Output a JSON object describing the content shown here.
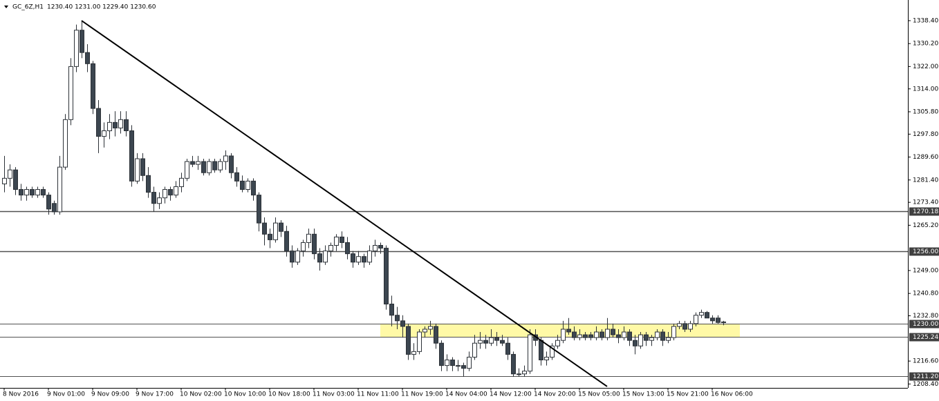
{
  "chart_data": {
    "type": "candlestick",
    "symbol": "GC_6Z,H1",
    "ohlc": "1230.40 1231.00 1229.40 1230.60",
    "ylim": [
      1207.0,
      1345.8
    ],
    "yticks": [
      {
        "value": 1338.4,
        "label": "1338.40"
      },
      {
        "value": 1330.2,
        "label": "1330.20"
      },
      {
        "value": 1322,
        "label": "1322.00"
      },
      {
        "value": 1314,
        "label": "1314.00"
      },
      {
        "value": 1305.8,
        "label": "1305.80"
      },
      {
        "value": 1297.8,
        "label": "1297.80"
      },
      {
        "value": 1289.6,
        "label": "1289.60"
      },
      {
        "value": 1281.4,
        "label": "1281.40"
      },
      {
        "value": 1273.4,
        "label": "1273.40"
      },
      {
        "value": 1265.2,
        "label": "1265.20"
      },
      {
        "value": 1249,
        "label": "1249.00"
      },
      {
        "value": 1240.8,
        "label": "1240.80"
      },
      {
        "value": 1232.8,
        "label": "1232.80"
      },
      {
        "value": 1216.6,
        "label": "1216.60"
      },
      {
        "value": 1208.4,
        "label": "1208.40"
      }
    ],
    "levels": [
      {
        "value": 1270.18,
        "label": "1270.18"
      },
      {
        "value": 1256,
        "label": "1256.00"
      },
      {
        "value": 1230,
        "label": "1230.00"
      },
      {
        "value": 1225.24,
        "label": "1225.24"
      },
      {
        "value": 1211.2,
        "label": "1211.20"
      }
    ],
    "zone": {
      "from_index": 68,
      "to_index": 133,
      "low": 1225.24,
      "high": 1230.0,
      "color": "#fff9a6"
    },
    "trendline": {
      "from": [
        14,
        1338.4
      ],
      "to": [
        109,
        1207.5
      ],
      "color": "#000000"
    },
    "colors": {
      "up": "#ffffff",
      "down": "#3c4650",
      "outline": "#2b3036"
    },
    "categories": [
      "8 Nov 2016",
      null,
      null,
      null,
      null,
      null,
      null,
      null,
      "9 Nov 01:00",
      null,
      null,
      null,
      null,
      null,
      null,
      null,
      "9 Nov 09:00",
      null,
      null,
      null,
      null,
      null,
      null,
      null,
      "9 Nov 17:00",
      null,
      null,
      null,
      null,
      null,
      null,
      null,
      "10 Nov 02:00",
      null,
      null,
      null,
      null,
      null,
      null,
      null,
      "10 Nov 10:00",
      null,
      null,
      null,
      null,
      null,
      null,
      null,
      "10 Nov 18:00",
      null,
      null,
      null,
      null,
      null,
      null,
      null,
      "11 Nov 03:00",
      null,
      null,
      null,
      null,
      null,
      null,
      null,
      "11 Nov 11:00",
      null,
      null,
      null,
      null,
      null,
      null,
      null,
      "11 Nov 19:00",
      null,
      null,
      null,
      null,
      null,
      null,
      null,
      "14 Nov 04:00",
      null,
      null,
      null,
      null,
      null,
      null,
      null,
      "14 Nov 12:00",
      null,
      null,
      null,
      null,
      null,
      null,
      null,
      "14 Nov 20:00",
      null,
      null,
      null,
      null,
      null,
      null,
      null,
      "15 Nov 05:00",
      null,
      null,
      null,
      null,
      null,
      null,
      null,
      "15 Nov 13:00",
      null,
      null,
      null,
      null,
      null,
      null,
      null,
      "15 Nov 21:00",
      null,
      null,
      null,
      null,
      null,
      null,
      null,
      "16 Nov 06:00",
      null,
      null
    ],
    "candles": [
      [
        1280,
        1290,
        1277,
        1282
      ],
      [
        1282,
        1287,
        1279,
        1285
      ],
      [
        1285,
        1286,
        1276,
        1278
      ],
      [
        1278,
        1280,
        1274,
        1276
      ],
      [
        1276,
        1279,
        1274,
        1278
      ],
      [
        1278,
        1279,
        1275,
        1276
      ],
      [
        1276,
        1279,
        1275,
        1278
      ],
      [
        1278,
        1279,
        1275,
        1276
      ],
      [
        1276,
        1277,
        1269,
        1271
      ],
      [
        1273,
        1274,
        1269,
        1270
      ],
      [
        1270,
        1290,
        1269,
        1286
      ],
      [
        1286,
        1305,
        1285,
        1303
      ],
      [
        1303,
        1325,
        1301,
        1322
      ],
      [
        1322,
        1337,
        1320,
        1335
      ],
      [
        1335,
        1338.4,
        1325,
        1327
      ],
      [
        1327,
        1330,
        1320,
        1323
      ],
      [
        1323,
        1324,
        1305,
        1307
      ],
      [
        1307,
        1310,
        1291,
        1297
      ],
      [
        1297,
        1302,
        1293,
        1299
      ],
      [
        1299,
        1305,
        1296,
        1302
      ],
      [
        1302,
        1306,
        1297,
        1300
      ],
      [
        1300,
        1306,
        1298,
        1303
      ],
      [
        1303,
        1306,
        1297,
        1299
      ],
      [
        1299,
        1301,
        1279,
        1281
      ],
      [
        1281,
        1291,
        1280,
        1289
      ],
      [
        1289,
        1291,
        1281,
        1283
      ],
      [
        1283,
        1286,
        1275,
        1277
      ],
      [
        1277,
        1279,
        1270,
        1273
      ],
      [
        1273,
        1277,
        1271,
        1275
      ],
      [
        1275,
        1279,
        1273,
        1278
      ],
      [
        1278,
        1279,
        1274,
        1276
      ],
      [
        1276,
        1281,
        1275,
        1279
      ],
      [
        1279,
        1284,
        1277,
        1282
      ],
      [
        1282,
        1289,
        1281,
        1288
      ],
      [
        1288,
        1290,
        1286,
        1287
      ],
      [
        1287,
        1290,
        1285,
        1288
      ],
      [
        1288,
        1289,
        1283,
        1284
      ],
      [
        1284,
        1289,
        1283,
        1288
      ],
      [
        1288,
        1289,
        1284,
        1285
      ],
      [
        1285,
        1289,
        1284,
        1288
      ],
      [
        1288,
        1292,
        1285,
        1290
      ],
      [
        1290,
        1291,
        1282,
        1284
      ],
      [
        1284,
        1286,
        1279,
        1281
      ],
      [
        1281,
        1283,
        1277,
        1278
      ],
      [
        1278,
        1282,
        1277,
        1281
      ],
      [
        1281,
        1282,
        1274,
        1276
      ],
      [
        1276,
        1277,
        1263,
        1266
      ],
      [
        1266,
        1268,
        1258,
        1262
      ],
      [
        1262,
        1264,
        1257,
        1260
      ],
      [
        1260,
        1268,
        1259,
        1266
      ],
      [
        1266,
        1267,
        1261,
        1263
      ],
      [
        1263,
        1265,
        1254,
        1256
      ],
      [
        1256,
        1258,
        1250,
        1252
      ],
      [
        1252,
        1257,
        1251,
        1256
      ],
      [
        1256,
        1260,
        1254,
        1259
      ],
      [
        1259,
        1264,
        1257,
        1262
      ],
      [
        1262,
        1264,
        1253,
        1255
      ],
      [
        1255,
        1257,
        1249,
        1252
      ],
      [
        1252,
        1258,
        1251,
        1256
      ],
      [
        1256,
        1259,
        1254,
        1258
      ],
      [
        1258,
        1262,
        1256,
        1261
      ],
      [
        1261,
        1263,
        1257,
        1259
      ],
      [
        1259,
        1261,
        1253,
        1255
      ],
      [
        1255,
        1256,
        1250,
        1252
      ],
      [
        1252,
        1256,
        1251,
        1254
      ],
      [
        1254,
        1255,
        1250,
        1252
      ],
      [
        1252,
        1258,
        1251,
        1256
      ],
      [
        1256,
        1260,
        1254,
        1258
      ],
      [
        1258,
        1259,
        1255,
        1257
      ],
      [
        1257,
        1258,
        1235,
        1237
      ],
      [
        1237,
        1240,
        1229,
        1233
      ],
      [
        1233,
        1236,
        1228,
        1231
      ],
      [
        1231,
        1233,
        1225,
        1229
      ],
      [
        1229,
        1230,
        1217,
        1219
      ],
      [
        1219,
        1223,
        1217,
        1220
      ],
      [
        1220,
        1228,
        1219,
        1227
      ],
      [
        1227,
        1229,
        1225,
        1228
      ],
      [
        1228,
        1231,
        1226,
        1229
      ],
      [
        1229,
        1230,
        1221,
        1223
      ],
      [
        1223,
        1224,
        1213,
        1215
      ],
      [
        1215,
        1219,
        1213,
        1217
      ],
      [
        1217,
        1218,
        1213,
        1215
      ],
      [
        1215,
        1217,
        1213,
        1215
      ],
      [
        1215,
        1216,
        1211,
        1214
      ],
      [
        1214,
        1220,
        1213,
        1218
      ],
      [
        1218,
        1226,
        1217,
        1223
      ],
      [
        1223,
        1227,
        1221,
        1224
      ],
      [
        1224,
        1226,
        1221,
        1223
      ],
      [
        1223,
        1228,
        1222,
        1225
      ],
      [
        1225,
        1227,
        1222,
        1224
      ],
      [
        1224,
        1226,
        1222,
        1223
      ],
      [
        1223,
        1225,
        1217,
        1219
      ],
      [
        1219,
        1220,
        1211,
        1212
      ],
      [
        1212,
        1214,
        1211,
        1212
      ],
      [
        1212,
        1215,
        1211,
        1213
      ],
      [
        1213,
        1228,
        1212,
        1226
      ],
      [
        1226,
        1228,
        1222,
        1224
      ],
      [
        1224,
        1225,
        1215,
        1217
      ],
      [
        1217,
        1220,
        1215,
        1218
      ],
      [
        1218,
        1223,
        1217,
        1222
      ],
      [
        1222,
        1226,
        1221,
        1224
      ],
      [
        1224,
        1231,
        1223,
        1228
      ],
      [
        1228,
        1232,
        1226,
        1227
      ],
      [
        1227,
        1229,
        1224,
        1225
      ],
      [
        1225,
        1228,
        1224,
        1226
      ],
      [
        1226,
        1227,
        1224,
        1225
      ],
      [
        1226,
        1227,
        1224,
        1225
      ],
      [
        1225,
        1229,
        1224,
        1227
      ],
      [
        1227,
        1228,
        1224,
        1225
      ],
      [
        1225,
        1232,
        1224,
        1228
      ],
      [
        1228,
        1230,
        1225,
        1226
      ],
      [
        1226,
        1228,
        1223,
        1225
      ],
      [
        1225,
        1229,
        1224,
        1227
      ],
      [
        1227,
        1228,
        1222,
        1224
      ],
      [
        1224,
        1226,
        1219,
        1222
      ],
      [
        1222,
        1227,
        1221,
        1226
      ],
      [
        1226,
        1227,
        1222,
        1224
      ],
      [
        1224,
        1226,
        1222,
        1225
      ],
      [
        1225,
        1228,
        1224,
        1227
      ],
      [
        1227,
        1228,
        1222,
        1224
      ],
      [
        1224,
        1227,
        1223,
        1225
      ],
      [
        1225,
        1230,
        1224,
        1229
      ],
      [
        1229,
        1231,
        1228,
        1230
      ],
      [
        1230,
        1231,
        1227,
        1228
      ],
      [
        1228,
        1231,
        1227,
        1230
      ],
      [
        1230,
        1234,
        1229,
        1233
      ],
      [
        1233,
        1235,
        1232,
        1234
      ],
      [
        1234,
        1234.5,
        1232,
        1232
      ],
      [
        1232,
        1233,
        1230,
        1231
      ],
      [
        1232,
        1233,
        1230,
        1230.4
      ],
      [
        1230.4,
        1231,
        1229.4,
        1230.6
      ]
    ]
  }
}
